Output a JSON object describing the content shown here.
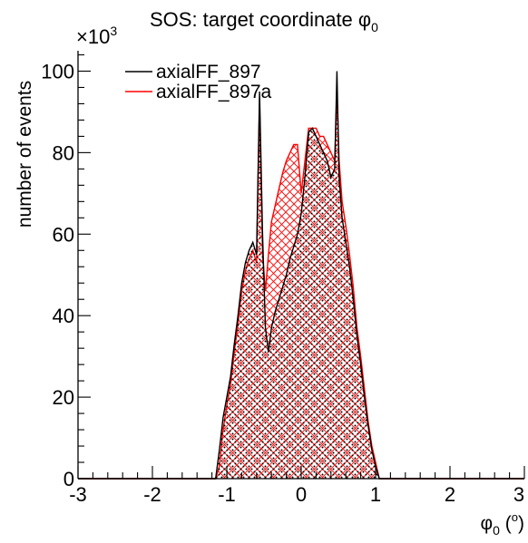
{
  "chart_data": {
    "type": "histogram",
    "title_main": "SOS: target coordinate ",
    "title_sym": "φ",
    "title_sub": "0",
    "xlabel_sym": "φ",
    "xlabel_sub": "0",
    "xlabel_unit_open": " (",
    "xlabel_unit_deg": "o",
    "xlabel_unit_close": ")",
    "ylabel": "number of events",
    "y_multiplier_base": "×10",
    "y_multiplier_exp": "3",
    "xlim": [
      -3,
      3
    ],
    "ylim": [
      0,
      105
    ],
    "x_ticks": [
      "-3",
      "-2",
      "-1",
      "0",
      "1",
      "2",
      "3"
    ],
    "y_ticks": [
      "0",
      "20",
      "40",
      "60",
      "80",
      "100"
    ],
    "x_tick_values": [
      -3,
      -2,
      -1,
      0,
      1,
      2,
      3
    ],
    "y_tick_values": [
      0,
      20,
      40,
      60,
      80,
      100
    ],
    "legend_position": "top-left",
    "series": [
      {
        "name": "axialFF_897",
        "color": "#000000",
        "fill": "dots",
        "points": [
          [
            -3.0,
            0
          ],
          [
            -1.15,
            0
          ],
          [
            -1.1,
            7
          ],
          [
            -1.05,
            15
          ],
          [
            -1.0,
            20
          ],
          [
            -0.95,
            25
          ],
          [
            -0.9,
            33
          ],
          [
            -0.85,
            40
          ],
          [
            -0.8,
            48
          ],
          [
            -0.75,
            53
          ],
          [
            -0.7,
            56
          ],
          [
            -0.65,
            58
          ],
          [
            -0.6,
            55
          ],
          [
            -0.56,
            95
          ],
          [
            -0.52,
            60
          ],
          [
            -0.48,
            37
          ],
          [
            -0.44,
            31
          ],
          [
            -0.4,
            37
          ],
          [
            -0.35,
            41
          ],
          [
            -0.3,
            44
          ],
          [
            -0.25,
            47
          ],
          [
            -0.2,
            50
          ],
          [
            -0.15,
            54
          ],
          [
            -0.1,
            57
          ],
          [
            -0.05,
            60
          ],
          [
            0.0,
            65
          ],
          [
            0.05,
            74
          ],
          [
            0.1,
            85
          ],
          [
            0.15,
            86
          ],
          [
            0.2,
            84
          ],
          [
            0.25,
            82
          ],
          [
            0.3,
            80
          ],
          [
            0.35,
            78
          ],
          [
            0.4,
            74
          ],
          [
            0.45,
            76
          ],
          [
            0.48,
            100
          ],
          [
            0.51,
            74
          ],
          [
            0.55,
            64
          ],
          [
            0.6,
            58
          ],
          [
            0.65,
            52
          ],
          [
            0.7,
            44
          ],
          [
            0.75,
            35
          ],
          [
            0.8,
            28
          ],
          [
            0.85,
            20
          ],
          [
            0.9,
            13
          ],
          [
            0.95,
            7
          ],
          [
            1.0,
            3
          ],
          [
            1.05,
            0
          ],
          [
            3.0,
            0
          ]
        ]
      },
      {
        "name": "axialFF_897a",
        "color": "#ff0000",
        "fill": "crosshatch",
        "points": [
          [
            -3.0,
            0
          ],
          [
            -1.15,
            0
          ],
          [
            -1.1,
            3
          ],
          [
            -1.05,
            12
          ],
          [
            -1.0,
            18
          ],
          [
            -0.95,
            23
          ],
          [
            -0.9,
            31
          ],
          [
            -0.85,
            38
          ],
          [
            -0.8,
            46
          ],
          [
            -0.75,
            51
          ],
          [
            -0.7,
            54
          ],
          [
            -0.65,
            56
          ],
          [
            -0.6,
            53
          ],
          [
            -0.56,
            93
          ],
          [
            -0.52,
            55
          ],
          [
            -0.48,
            46
          ],
          [
            -0.44,
            55
          ],
          [
            -0.4,
            63
          ],
          [
            -0.35,
            67
          ],
          [
            -0.3,
            71
          ],
          [
            -0.25,
            75
          ],
          [
            -0.2,
            78
          ],
          [
            -0.15,
            80
          ],
          [
            -0.1,
            82
          ],
          [
            -0.05,
            82
          ],
          [
            0.0,
            70
          ],
          [
            0.05,
            78
          ],
          [
            0.1,
            86
          ],
          [
            0.15,
            86
          ],
          [
            0.2,
            86
          ],
          [
            0.25,
            84
          ],
          [
            0.3,
            84
          ],
          [
            0.35,
            82
          ],
          [
            0.4,
            80
          ],
          [
            0.45,
            78
          ],
          [
            0.48,
            95
          ],
          [
            0.51,
            78
          ],
          [
            0.55,
            68
          ],
          [
            0.6,
            62
          ],
          [
            0.65,
            55
          ],
          [
            0.7,
            47
          ],
          [
            0.75,
            37
          ],
          [
            0.8,
            30
          ],
          [
            0.85,
            22
          ],
          [
            0.9,
            14
          ],
          [
            0.95,
            8
          ],
          [
            1.0,
            4
          ],
          [
            1.05,
            0
          ],
          [
            3.0,
            0
          ]
        ]
      }
    ]
  }
}
